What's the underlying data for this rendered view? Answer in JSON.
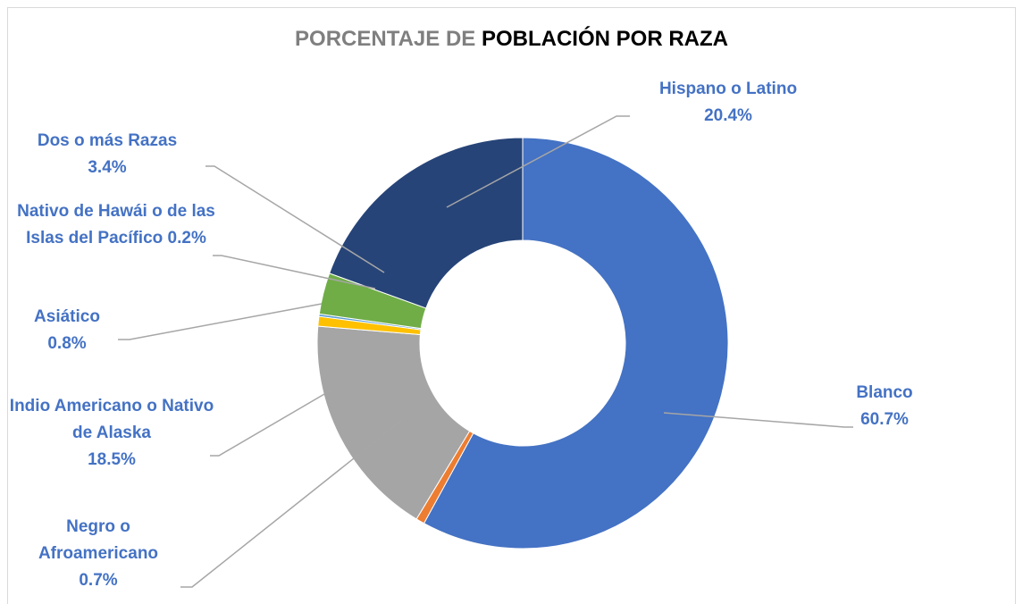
{
  "chart_data": {
    "type": "donut",
    "title_parts": [
      {
        "text": "PORCENTAJE DE",
        "color": "#7f7f7f"
      },
      {
        "text": "POBLACIÓN  POR RAZA",
        "color": "#000000"
      }
    ],
    "categories": [
      "Blanco",
      "Negro o Afroamericano",
      "Indio Americano o Nativo de Alaska",
      "Asiático",
      "Nativo de Hawái o de las Islas del Pacífico",
      "Dos o más Razas",
      "Hispano o Latino"
    ],
    "values": [
      60.7,
      0.7,
      18.5,
      0.8,
      0.2,
      3.4,
      20.4
    ],
    "value_labels": [
      "60.7%",
      "0.7%",
      "18.5%",
      "0.8%",
      "0.2%",
      "3.4%",
      "20.4%"
    ],
    "colors": [
      "#4472c4",
      "#ed7d31",
      "#a5a5a5",
      "#ffc000",
      "#5b9bd5",
      "#70ad47",
      "#264478"
    ],
    "label_color": "#4472c4"
  }
}
